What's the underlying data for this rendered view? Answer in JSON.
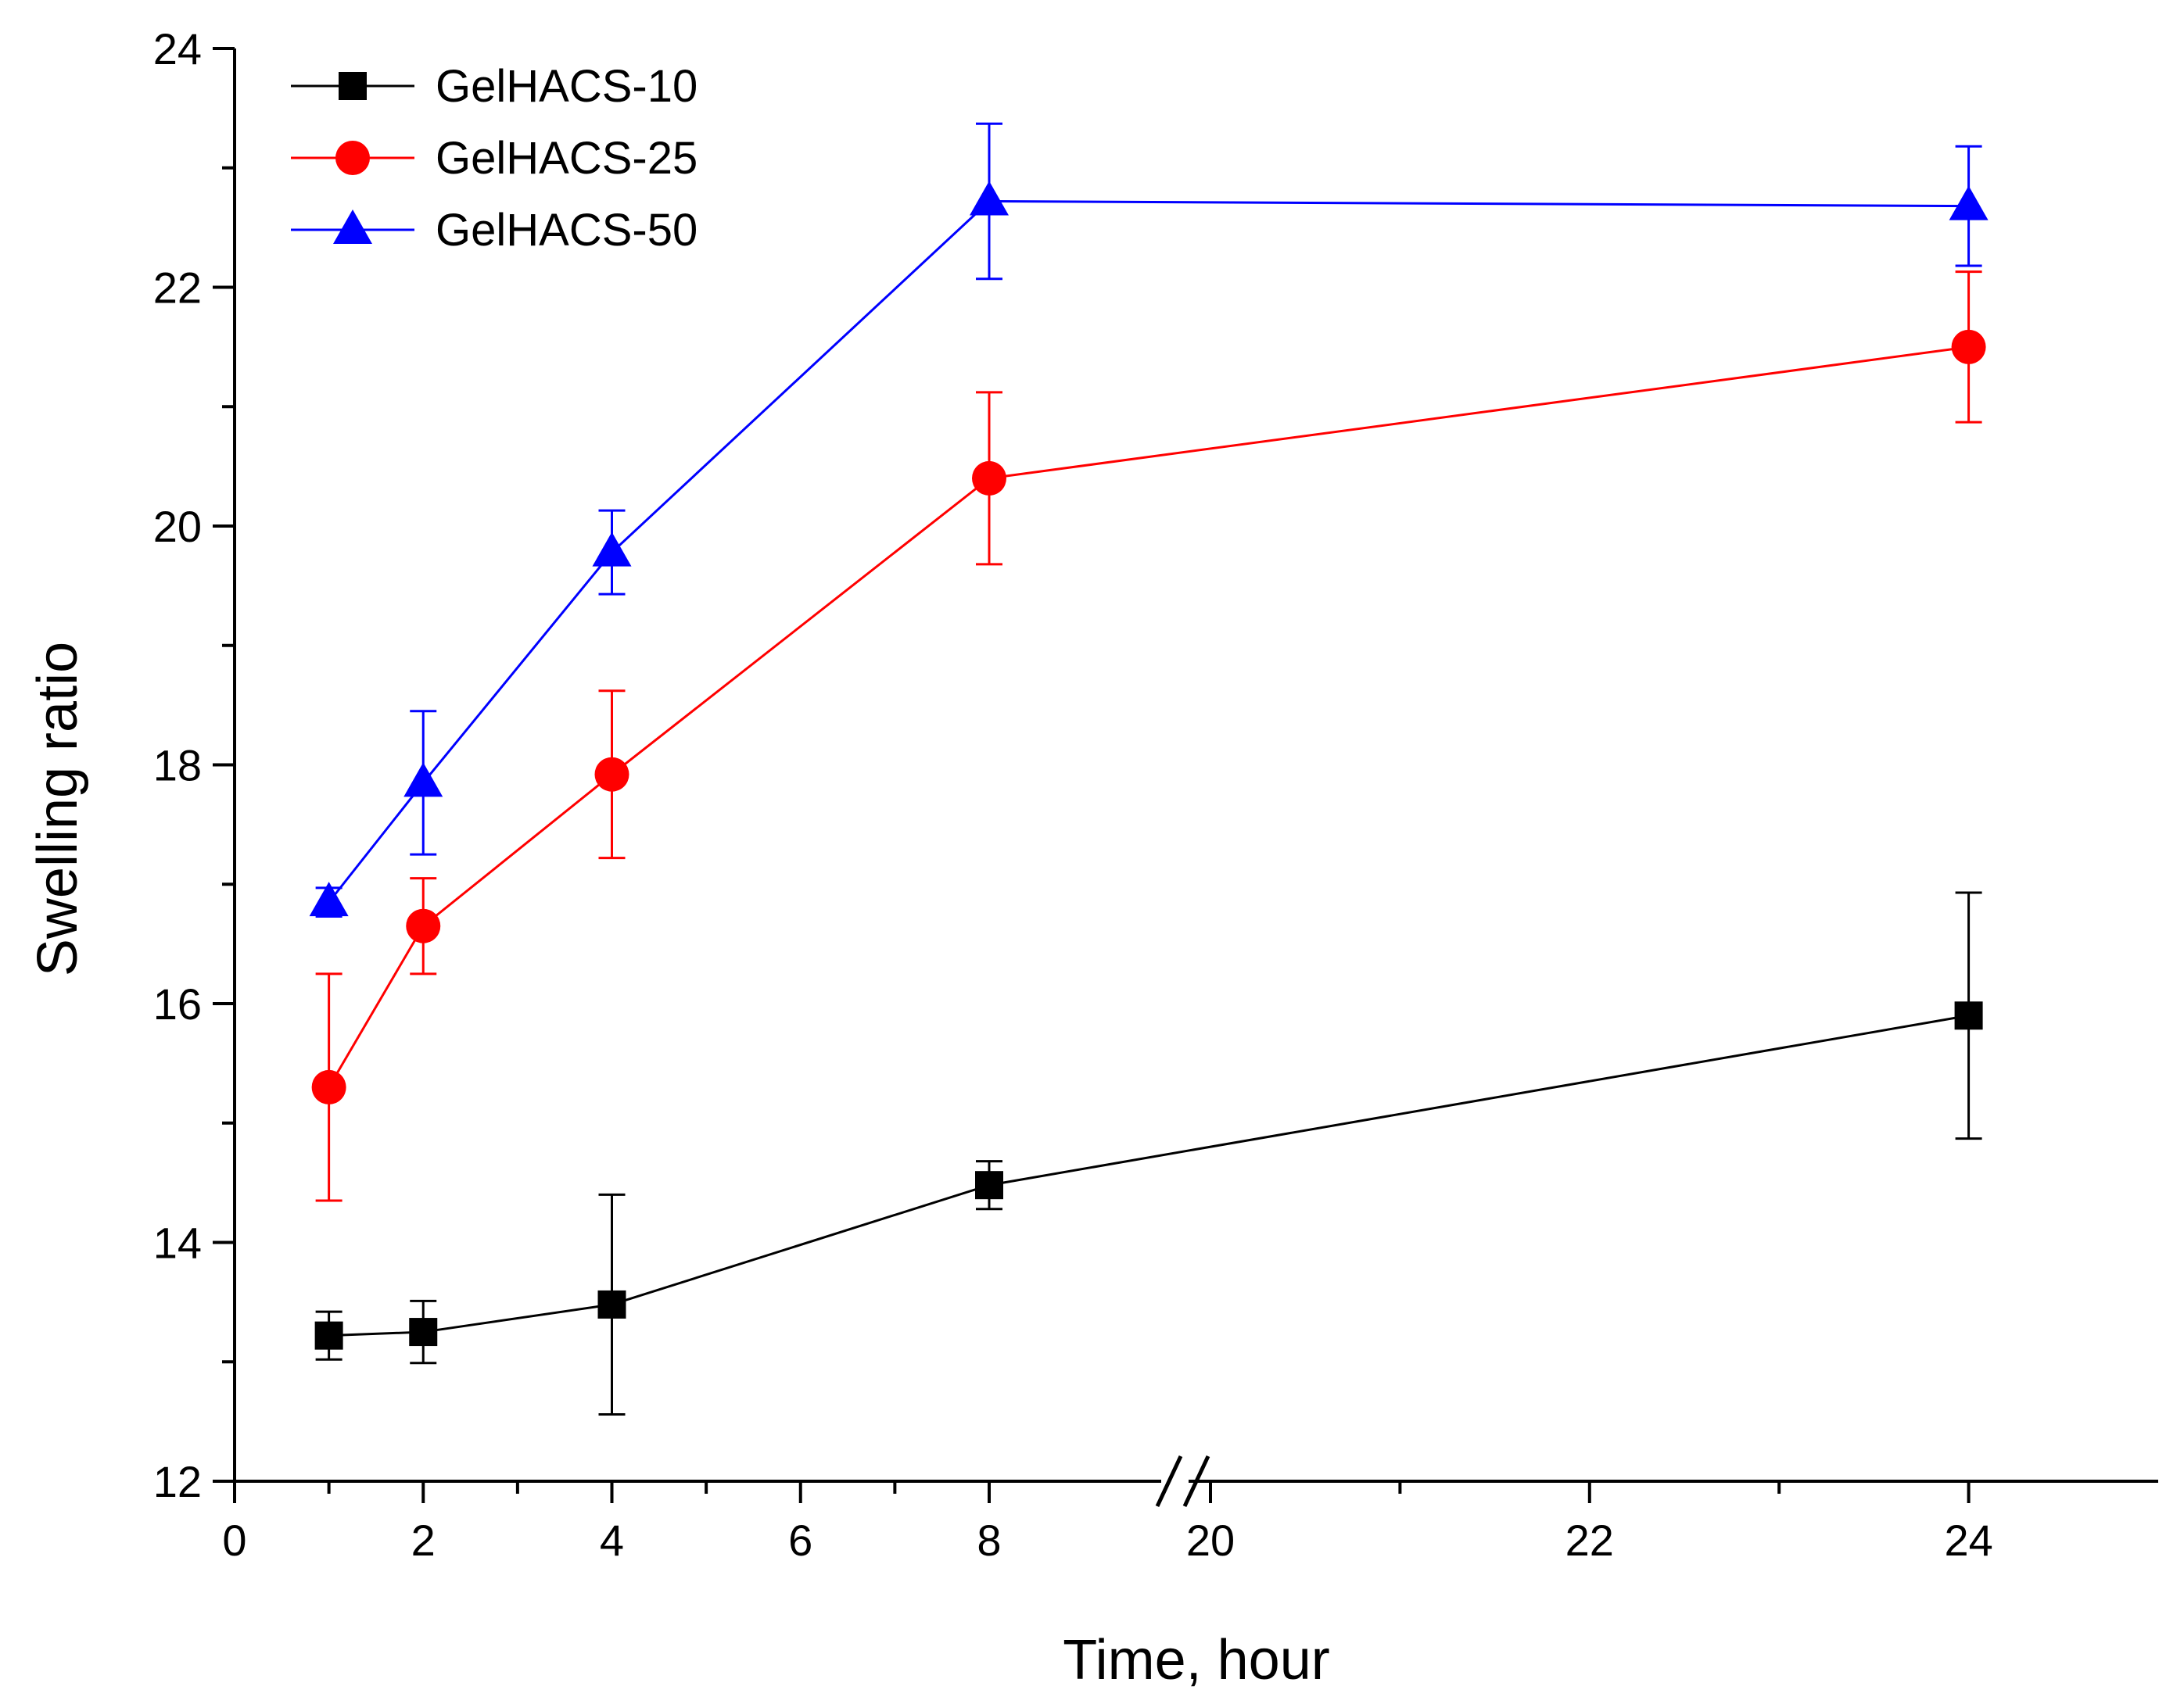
{
  "chart_data": {
    "type": "line",
    "title": "",
    "xlabel": "Time, hour",
    "ylabel": "Swelling ratio",
    "ylim": [
      12,
      24
    ],
    "x_axis_break": {
      "before": 8,
      "after": 20
    },
    "x_segments": [
      {
        "range": [
          0,
          8
        ],
        "ticks": [
          0,
          2,
          4,
          6,
          8
        ],
        "tick_labels": [
          "0",
          "2",
          "4",
          "6",
          "8"
        ]
      },
      {
        "range": [
          20,
          25
        ],
        "ticks": [
          20,
          22,
          24
        ],
        "tick_labels": [
          "20",
          "22",
          "24"
        ]
      }
    ],
    "y_ticks": [
      12,
      14,
      16,
      18,
      20,
      22,
      24
    ],
    "y_tick_labels": [
      "12",
      "14",
      "16",
      "18",
      "20",
      "22",
      "24"
    ],
    "legend_position": "top-left",
    "x": [
      1,
      2,
      4,
      8,
      24
    ],
    "series": [
      {
        "name": "GelHACS-10",
        "color": "#000000",
        "marker": "square",
        "values": [
          13.22,
          13.25,
          13.48,
          14.48,
          15.9
        ],
        "errors": [
          0.2,
          0.26,
          0.92,
          0.2,
          1.03
        ]
      },
      {
        "name": "GelHACS-25",
        "color": "#ff0000",
        "marker": "circle",
        "values": [
          15.3,
          16.65,
          17.92,
          20.4,
          21.5
        ],
        "errors": [
          0.95,
          0.4,
          0.7,
          0.72,
          0.63
        ]
      },
      {
        "name": "GelHACS-50",
        "color": "#0000ff",
        "marker": "triangle",
        "values": [
          16.85,
          17.85,
          19.78,
          22.72,
          22.68
        ],
        "errors": [
          0.12,
          0.6,
          0.35,
          0.65,
          0.5
        ]
      }
    ]
  }
}
